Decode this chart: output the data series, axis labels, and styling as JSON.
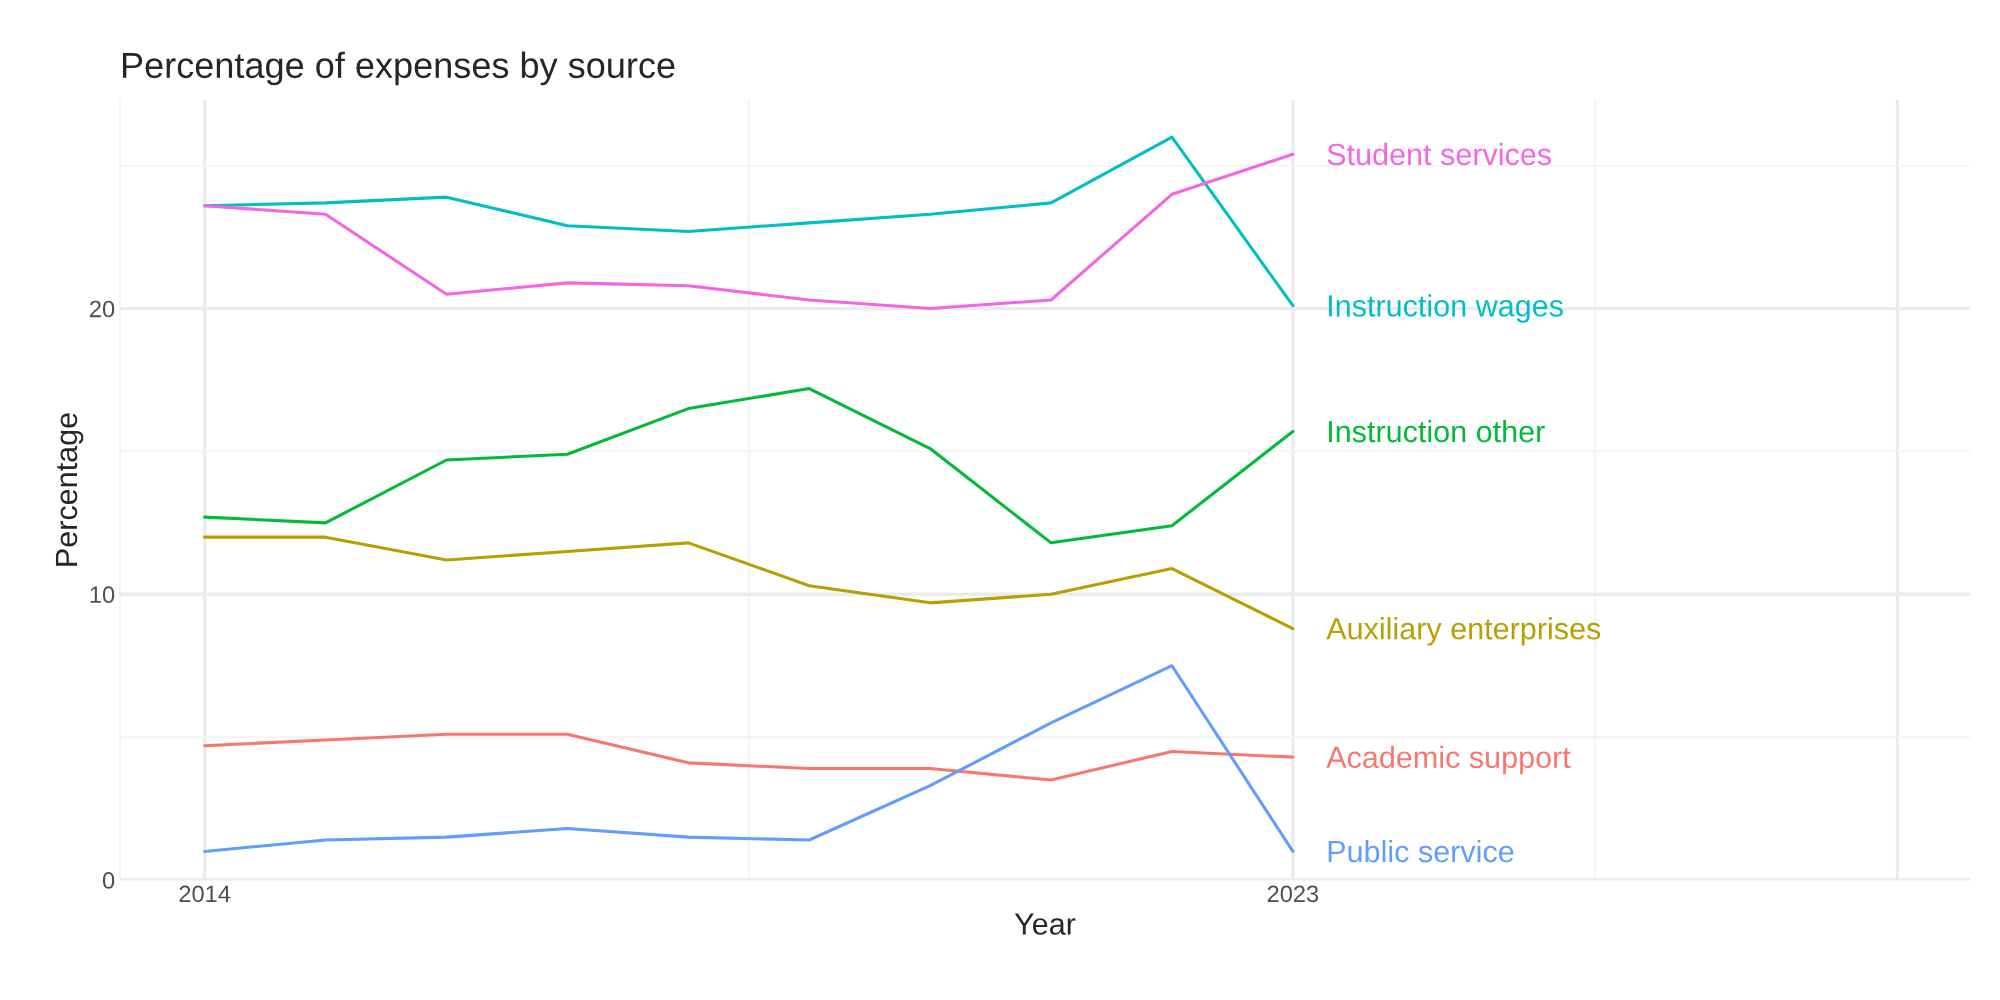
{
  "chart_data": {
    "type": "line",
    "title": "Percentage of expenses by source",
    "xlabel": "Year",
    "ylabel": "Percentage",
    "x": [
      2014,
      2015,
      2016,
      2017,
      2018,
      2019,
      2020,
      2021,
      2022,
      2023
    ],
    "xlim": [
      2013.3,
      2028.6
    ],
    "xticks": [
      2014,
      2023,
      {
        "value": 2028,
        "label": null
      }
    ],
    "ylim": [
      0,
      27.3
    ],
    "yticks": [
      0,
      10,
      20
    ],
    "grid": true,
    "legend": false,
    "marker": "none",
    "line_style": "solid",
    "series": [
      {
        "name": "Academic support",
        "color": "#f8766d",
        "values": [
          4.7,
          4.9,
          5.1,
          5.1,
          4.1,
          3.9,
          3.9,
          3.5,
          4.5,
          4.3
        ]
      },
      {
        "name": "Auxiliary enterprises",
        "color": "#b79f00",
        "values": [
          12.0,
          12.0,
          11.2,
          11.5,
          11.8,
          10.3,
          9.7,
          10.0,
          10.9,
          8.8
        ]
      },
      {
        "name": "Instruction other",
        "color": "#00ba38",
        "values": [
          12.7,
          12.5,
          14.7,
          14.9,
          16.5,
          17.2,
          15.1,
          11.8,
          12.4,
          15.7
        ]
      },
      {
        "name": "Instruction wages",
        "color": "#00bfc4",
        "values": [
          23.6,
          23.7,
          23.9,
          22.9,
          22.7,
          23.0,
          23.3,
          23.7,
          26.0,
          20.1
        ]
      },
      {
        "name": "Public service",
        "color": "#619cff",
        "values": [
          1.0,
          1.4,
          1.5,
          1.8,
          1.5,
          1.4,
          3.3,
          5.5,
          7.5,
          1.0
        ]
      },
      {
        "name": "Student services",
        "color": "#f564e3",
        "values": [
          23.6,
          23.3,
          20.5,
          20.9,
          20.8,
          20.3,
          20.0,
          20.3,
          24.0,
          25.4
        ]
      }
    ]
  }
}
